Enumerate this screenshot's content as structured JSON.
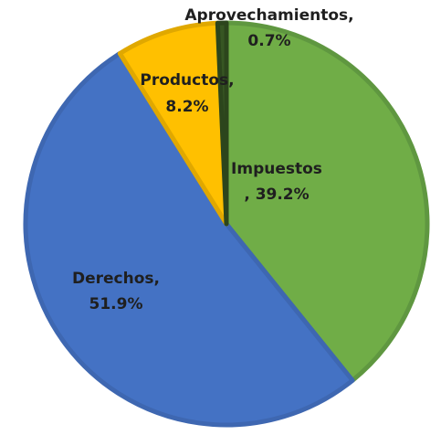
{
  "chart_data": {
    "type": "pie",
    "categories": [
      "Impuestos",
      "Derechos,",
      "Productos,",
      "Aprovechamientos,"
    ],
    "values": [
      39.2,
      51.9,
      8.2,
      0.7
    ],
    "value_labels": [
      ", 39.2%",
      "51.9%",
      "8.2%",
      "0.7%"
    ],
    "colors": [
      "#70ad47",
      "#4472c4",
      "#ffc000",
      "#375623"
    ],
    "edge_colors": [
      "#5f9740",
      "#3e67b1",
      "#e0a800",
      "#2c451c"
    ]
  }
}
